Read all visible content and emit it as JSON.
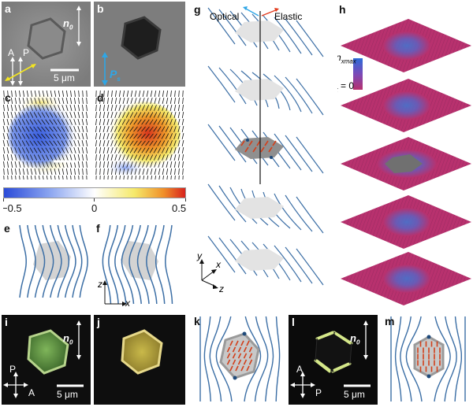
{
  "panels": {
    "a": "a",
    "b": "b",
    "c": "c",
    "d": "d",
    "e": "e",
    "f": "f",
    "g": "g",
    "h": "h",
    "i": "i",
    "j": "j",
    "k": "k",
    "l": "l",
    "m": "m"
  },
  "text": {
    "n0": "n",
    "n0_sub": "0",
    "A": "A",
    "P": "P",
    "scale": "5 μm",
    "P_vec": "P",
    "P_vec_sub": "s",
    "optical": "Optical",
    "elastic": "Elastic",
    "nx_max": "n",
    "nx_max_sub": "xmax",
    "nx_zero": "n",
    "nx_zero_sub": "x",
    "nx_zero_eq": " = 0",
    "x": "x",
    "y": "y",
    "z": "z"
  },
  "colorbar": {
    "min_label": "−0.5",
    "mid_label": "0",
    "max_label": "0.5",
    "colors": [
      "#2b4bd8",
      "#8aa4f0",
      "#ffffff",
      "#f5e96a",
      "#d8231d"
    ]
  },
  "colors": {
    "director": "#3b6ea5",
    "hexagon": "#d3d3d3",
    "rods": "#d2401c",
    "magenta": "#b8316e",
    "blue_core": "#4a7dd1",
    "green_crystal": "#6fa54e",
    "yellow_crystal": "#c6b84a"
  }
}
